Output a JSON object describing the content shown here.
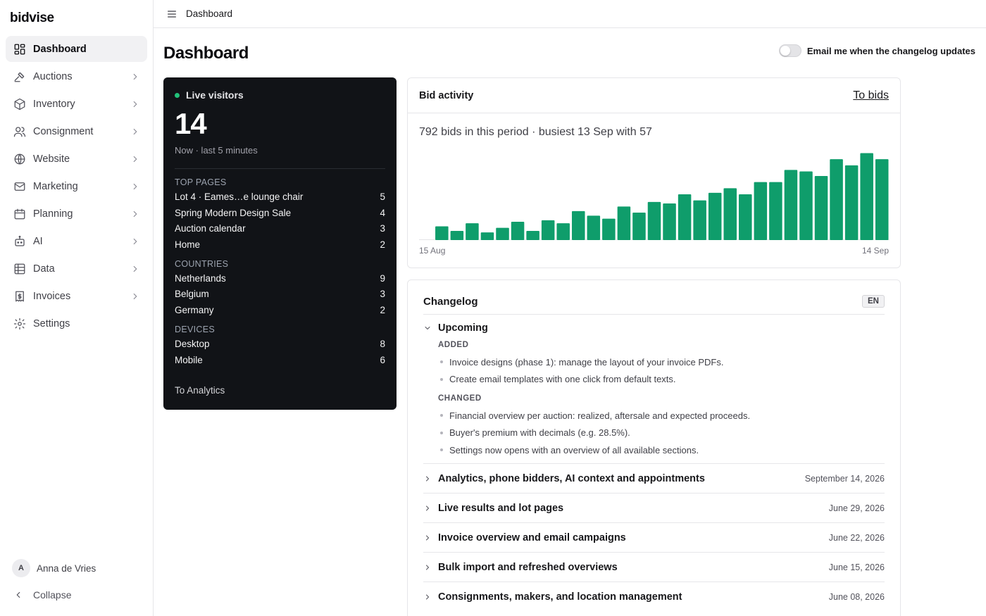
{
  "app": {
    "brand": "bidvise"
  },
  "sidebar": {
    "items": [
      {
        "label": "Dashboard",
        "icon": "dashboard-icon",
        "active": true,
        "has_children": false
      },
      {
        "label": "Auctions",
        "icon": "gavel-icon",
        "has_children": true
      },
      {
        "label": "Inventory",
        "icon": "box-icon",
        "has_children": true
      },
      {
        "label": "Consignment",
        "icon": "users-icon",
        "has_children": true
      },
      {
        "label": "Website",
        "icon": "globe-icon",
        "has_children": true
      },
      {
        "label": "Marketing",
        "icon": "mail-icon",
        "has_children": true
      },
      {
        "label": "Planning",
        "icon": "calendar-icon",
        "has_children": true
      },
      {
        "label": "AI",
        "icon": "robot-icon",
        "has_children": true
      },
      {
        "label": "Data",
        "icon": "table-icon",
        "has_children": true
      },
      {
        "label": "Invoices",
        "icon": "invoice-icon",
        "has_children": true
      },
      {
        "label": "Settings",
        "icon": "gear-icon",
        "has_children": false
      }
    ],
    "user": {
      "initial": "A",
      "name": "Anna de Vries"
    },
    "collapse_label": "Collapse"
  },
  "topbar": {
    "breadcrumb": "Dashboard"
  },
  "page": {
    "title": "Dashboard",
    "email_toggle": {
      "label": "Email me when the changelog updates",
      "on": false
    }
  },
  "live": {
    "title": "Live visitors",
    "count": "14",
    "subtitle": "Now · last 5 minutes",
    "sections": [
      {
        "title": "TOP PAGES",
        "rows": [
          {
            "label": "Lot 4 · Eames…e lounge chair",
            "value": "5"
          },
          {
            "label": "Spring Modern Design Sale",
            "value": "4"
          },
          {
            "label": "Auction calendar",
            "value": "3"
          },
          {
            "label": "Home",
            "value": "2"
          }
        ]
      },
      {
        "title": "COUNTRIES",
        "rows": [
          {
            "label": "Netherlands",
            "value": "9"
          },
          {
            "label": "Belgium",
            "value": "3"
          },
          {
            "label": "Germany",
            "value": "2"
          }
        ]
      },
      {
        "title": "DEVICES",
        "rows": [
          {
            "label": "Desktop",
            "value": "8"
          },
          {
            "label": "Mobile",
            "value": "6"
          }
        ]
      }
    ],
    "link": "To Analytics",
    "accent": "#22c27a"
  },
  "bid_activity": {
    "title": "Bid activity",
    "link": "To bids",
    "summary": "792 bids in this period · busiest 13 Sep with 57",
    "x_start": "15 Aug",
    "x_end": "14 Sep",
    "bar_color": "#0f9d6b"
  },
  "chart_data": {
    "type": "bar",
    "categories": [
      "15 Aug",
      "16 Aug",
      "17 Aug",
      "18 Aug",
      "19 Aug",
      "20 Aug",
      "21 Aug",
      "22 Aug",
      "23 Aug",
      "24 Aug",
      "25 Aug",
      "26 Aug",
      "27 Aug",
      "28 Aug",
      "29 Aug",
      "30 Aug",
      "31 Aug",
      "1 Sep",
      "2 Sep",
      "3 Sep",
      "4 Sep",
      "5 Sep",
      "6 Sep",
      "7 Sep",
      "8 Sep",
      "9 Sep",
      "10 Sep",
      "11 Sep",
      "12 Sep",
      "13 Sep",
      "14 Sep"
    ],
    "values": [
      0,
      9,
      6,
      11,
      5,
      8,
      12,
      6,
      13,
      11,
      19,
      16,
      14,
      22,
      18,
      25,
      24,
      30,
      26,
      31,
      34,
      30,
      38,
      38,
      46,
      45,
      42,
      53,
      49,
      57,
      53
    ],
    "xlabel": "",
    "ylabel": "",
    "ylim": [
      0,
      60
    ]
  },
  "changelog": {
    "title": "Changelog",
    "lang": "EN",
    "upcoming": {
      "title": "Upcoming",
      "groups": [
        {
          "category": "ADDED",
          "items": [
            "Invoice designs (phase 1): manage the layout of your invoice PDFs.",
            "Create email templates with one click from default texts."
          ]
        },
        {
          "category": "CHANGED",
          "items": [
            "Financial overview per auction: realized, aftersale and expected proceeds.",
            "Buyer's premium with decimals (e.g. 28.5%).",
            "Settings now opens with an overview of all available sections."
          ]
        }
      ]
    },
    "releases": [
      {
        "title": "Analytics, phone bidders, AI context and appointments",
        "date": "September 14, 2026"
      },
      {
        "title": "Live results and lot pages",
        "date": "June 29, 2026"
      },
      {
        "title": "Invoice overview and email campaigns",
        "date": "June 22, 2026"
      },
      {
        "title": "Bulk import and refreshed overviews",
        "date": "June 15, 2026"
      },
      {
        "title": "Consignments, makers, and location management",
        "date": "June 08, 2026"
      }
    ]
  }
}
